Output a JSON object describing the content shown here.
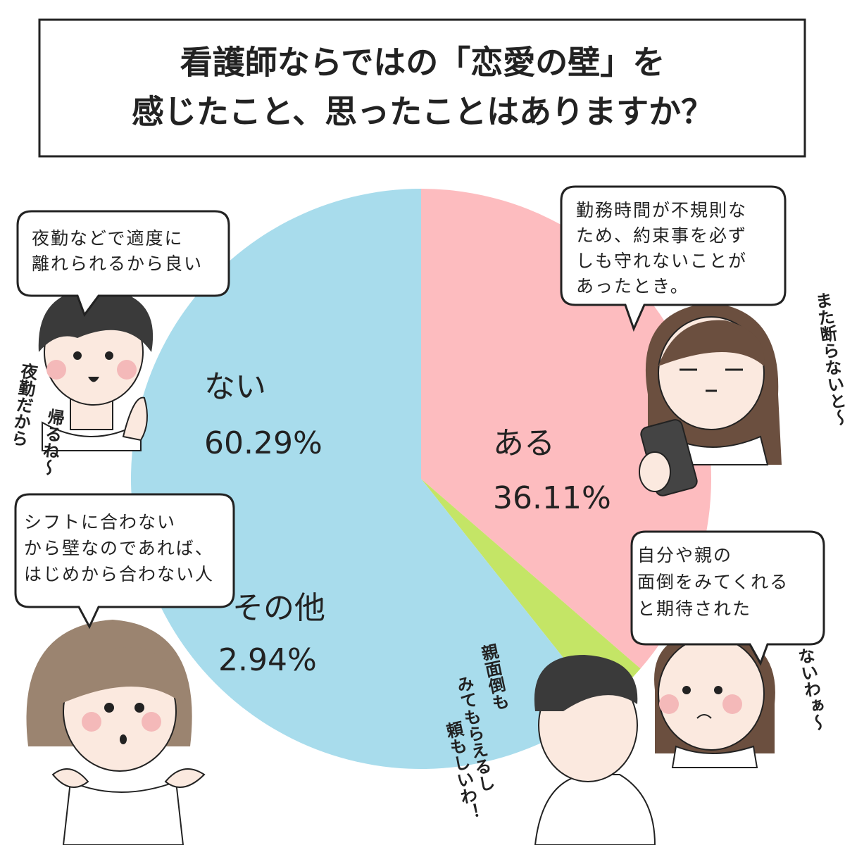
{
  "chart_data": {
    "type": "pie",
    "title": [
      "看護師ならではの「恋愛の壁」を",
      "感じたこと、思ったことはありますか？"
    ],
    "categories": [
      "ある",
      "その他",
      "ない"
    ],
    "values": [
      36.11,
      2.94,
      60.29
    ],
    "value_labels": [
      "36.11%",
      "2.94%",
      "60.29%"
    ],
    "colors": [
      "#fdbcbf",
      "#c4e566",
      "#a8dcec"
    ],
    "bubbles": [
      [
        "夜勤などで適度に",
        "離れられるから良い"
      ],
      [
        "勤務時間が不規則な",
        "ため、約束事を必ず",
        "しも守れないことが",
        "あったとき。"
      ],
      [
        "自分や親の",
        "面倒をみてくれる",
        "と期待された"
      ],
      [
        "シフトに合わない",
        "から壁なのであれば、",
        "はじめから合わない人"
      ]
    ],
    "side_comments": [
      [
        "夜勤だから",
        "帰るね〜"
      ],
      [
        "また断らないと〜"
      ],
      [
        "ないわぁ〜"
      ],
      [
        "親面倒も",
        "みてもらえるし",
        "頼もしいわ！"
      ]
    ]
  }
}
